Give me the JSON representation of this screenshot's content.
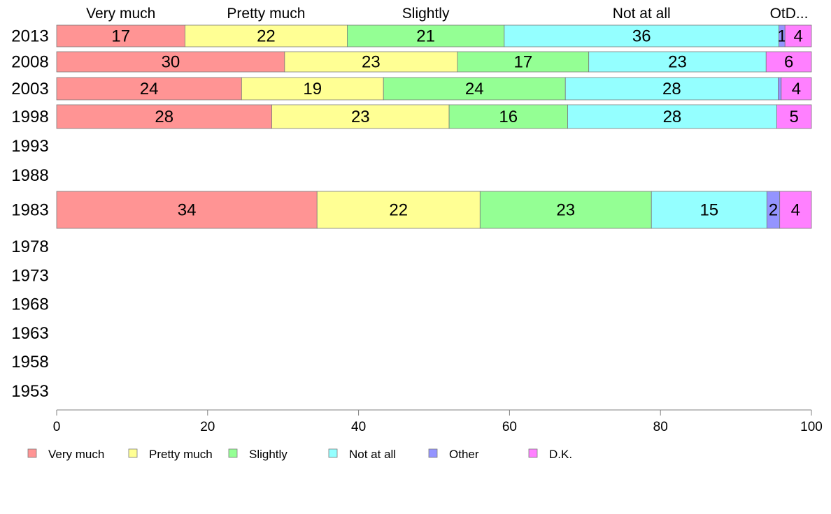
{
  "chart_data": {
    "type": "bar",
    "orientation": "horizontal",
    "stacked": true,
    "years": [
      "2013",
      "2008",
      "2003",
      "1998",
      "1993",
      "1988",
      "1983",
      "1978",
      "1973",
      "1968",
      "1963",
      "1958",
      "1953"
    ],
    "column_headers": [
      "Very much",
      "Pretty much",
      "Slightly",
      "Not at all",
      "OtD..."
    ],
    "series": [
      {
        "name": "Very much",
        "color": "#ff9494"
      },
      {
        "name": "Pretty much",
        "color": "#ffff94"
      },
      {
        "name": "Slightly",
        "color": "#94ff94"
      },
      {
        "name": "Not at all",
        "color": "#94ffff"
      },
      {
        "name": "Other",
        "color": "#9494ff"
      },
      {
        "name": "D.K.",
        "color": "#ff80ff"
      }
    ],
    "bars": [
      {
        "year": "2013",
        "values": [
          17,
          21.5,
          20.8,
          36.4,
          0.8,
          3.5
        ],
        "labels": [
          "17",
          "22",
          "21",
          "36",
          "1",
          "4"
        ]
      },
      {
        "year": "2008",
        "values": [
          30.2,
          22.9,
          17.4,
          23.5,
          0,
          6
        ],
        "labels": [
          "30",
          "23",
          "17",
          "23",
          "",
          "6"
        ]
      },
      {
        "year": "2003",
        "values": [
          24.5,
          18.8,
          24.1,
          28.2,
          0.4,
          4
        ],
        "labels": [
          "24",
          "19",
          "24",
          "28",
          "",
          "4"
        ]
      },
      {
        "year": "1998",
        "values": [
          28.5,
          23.5,
          15.7,
          27.7,
          0,
          4.6
        ],
        "labels": [
          "28",
          "23",
          "16",
          "28",
          "",
          "5"
        ]
      },
      {
        "year": "1983",
        "values": [
          34.5,
          21.6,
          22.7,
          15.3,
          1.7,
          4.2
        ],
        "labels": [
          "34",
          "22",
          "23",
          "15",
          "2",
          "4"
        ]
      }
    ],
    "x_ticks": [
      "0",
      "20",
      "40",
      "60",
      "80",
      "100"
    ],
    "xlim": [
      0,
      100
    ],
    "xlabel": "",
    "ylabel": "",
    "title": "",
    "grid": false,
    "legend_position": "bottom"
  }
}
